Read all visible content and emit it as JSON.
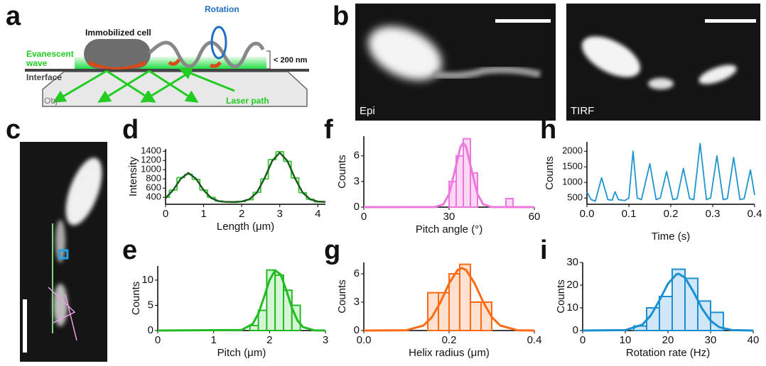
{
  "panel_labels": [
    "a",
    "b",
    "c",
    "d",
    "e",
    "f",
    "g",
    "h",
    "i"
  ],
  "diagram": {
    "cell": "Immobilized cell",
    "rotation": "Rotation",
    "wave": [
      "Evanescent",
      "wave"
    ],
    "depth": "< 200 nm",
    "interface": "Interface",
    "objective": "Obj",
    "laser": "Laser path"
  },
  "micrographs": {
    "epi": "Epi",
    "tirf": "TIRF"
  },
  "chart_data": [
    {
      "type": "line",
      "xlabel": "Length (μm)",
      "ylabel": "Intensity",
      "xlim": [
        0,
        4.2
      ],
      "xticks": [
        0,
        1,
        2,
        3,
        4
      ],
      "ylim": [
        250,
        1450
      ],
      "yticks": [
        400,
        600,
        800,
        1000,
        1200,
        1400
      ],
      "x": [
        0,
        0.2,
        0.4,
        0.6,
        0.8,
        1.0,
        1.2,
        1.4,
        1.6,
        1.8,
        2.0,
        2.2,
        2.4,
        2.6,
        2.8,
        3.0,
        3.2,
        3.4,
        3.6,
        3.8,
        4.0,
        4.2
      ],
      "series": [
        {
          "color": "#3cc43c",
          "step": true,
          "values": [
            400,
            560,
            830,
            900,
            790,
            560,
            400,
            320,
            300,
            290,
            310,
            350,
            510,
            800,
            1220,
            1390,
            1180,
            820,
            500,
            360,
            300,
            300
          ]
        },
        {
          "color": "#1d5a1d",
          "values": [
            385,
            558,
            804,
            930,
            804,
            558,
            385,
            316,
            301,
            300,
            310,
            357,
            505,
            814,
            1190,
            1370,
            1190,
            814,
            505,
            357,
            310,
            302
          ]
        }
      ]
    },
    {
      "type": "histogram",
      "xlabel": "Pitch (μm)",
      "ylabel": "Counts",
      "xlim": [
        0,
        3
      ],
      "xticks": [
        0,
        1,
        2,
        3
      ],
      "ylim": [
        0,
        12.8
      ],
      "yticks": [
        0,
        5,
        10
      ],
      "color": "#22bb22",
      "fill": "#d6f5d6",
      "bins": [
        1.65,
        1.8,
        1.95,
        2.1,
        2.25,
        2.4,
        2.55
      ],
      "values": [
        1,
        4,
        12,
        11,
        8,
        5
      ],
      "fit": {
        "x": [
          0,
          1.5,
          1.7,
          1.8,
          1.9,
          2.0,
          2.1,
          2.2,
          2.3,
          2.4,
          2.5,
          2.6,
          2.8,
          3
        ],
        "values": [
          0,
          0.1,
          1.32,
          3.34,
          6.55,
          10,
          11.94,
          11.08,
          8,
          4.5,
          1.97,
          0.67,
          0.04,
          0
        ]
      }
    },
    {
      "type": "histogram",
      "xlabel": "Pitch angle (°)",
      "ylabel": "Counts",
      "xlim": [
        0,
        60
      ],
      "xticks": [
        0,
        30,
        60
      ],
      "ylim": [
        0,
        8.3
      ],
      "yticks": [
        0,
        3,
        6
      ],
      "color": "#ee77dd",
      "fill": "#fbd8f4",
      "bins": [
        30,
        32.5,
        35,
        37.5,
        40,
        42.5,
        45,
        47.5,
        50,
        52.5
      ],
      "values": [
        3,
        6,
        8,
        4,
        0,
        0,
        0,
        0,
        1
      ],
      "fit": {
        "x": [
          0,
          25,
          28,
          30,
          32,
          34,
          35,
          36,
          38,
          40,
          42,
          45,
          60
        ],
        "values": [
          0,
          0.01,
          0.33,
          1.52,
          4.22,
          7.04,
          7.5,
          7.04,
          4.22,
          1.52,
          0.33,
          0.01,
          0
        ]
      }
    },
    {
      "type": "histogram",
      "xlabel": "Helix radius (μm)",
      "ylabel": "Counts",
      "xlim": [
        0,
        0.4
      ],
      "xticks": [
        {
          "value": 0,
          "label": "0.0"
        },
        0.2,
        0.4
      ],
      "ylim": [
        0,
        7.2
      ],
      "yticks": [
        0,
        3,
        6
      ],
      "color": "#ff6a13",
      "fill": "#fde0d0",
      "bins": [
        0.15,
        0.175,
        0.2,
        0.225,
        0.25,
        0.275,
        0.3
      ],
      "values": [
        4,
        4,
        6,
        7,
        3,
        3
      ],
      "fit": {
        "x": [
          0,
          0.1,
          0.14,
          0.16,
          0.18,
          0.2,
          0.22,
          0.23,
          0.24,
          0.26,
          0.28,
          0.3,
          0.32,
          0.36,
          0.4
        ],
        "values": [
          0,
          0.03,
          0.53,
          1.43,
          3.02,
          4.98,
          6.4,
          6.6,
          6.4,
          4.98,
          3.02,
          1.43,
          0.53,
          0.03,
          0
        ]
      }
    },
    {
      "type": "line",
      "xlabel": "Time (s)",
      "ylabel": "Counts",
      "xlim": [
        0,
        0.4
      ],
      "xticks": [
        {
          "value": 0,
          "label": "0.0"
        },
        0.1,
        0.2,
        0.3,
        0.4
      ],
      "ylim": [
        300,
        2300
      ],
      "yticks": [
        500,
        1000,
        1500,
        2000
      ],
      "x": [
        0,
        0.01,
        0.02,
        0.035,
        0.05,
        0.06,
        0.067,
        0.075,
        0.09,
        0.1,
        0.11,
        0.12,
        0.13,
        0.15,
        0.165,
        0.175,
        0.19,
        0.205,
        0.215,
        0.23,
        0.245,
        0.255,
        0.27,
        0.285,
        0.295,
        0.31,
        0.325,
        0.335,
        0.35,
        0.365,
        0.375,
        0.39,
        0.4
      ],
      "series": [
        {
          "color": "#1f95cf",
          "values": [
            700,
            450,
            400,
            1150,
            450,
            430,
            700,
            450,
            420,
            500,
            2000,
            500,
            450,
            1600,
            450,
            500,
            1350,
            450,
            480,
            1450,
            480,
            450,
            2250,
            450,
            500,
            1850,
            450,
            480,
            1800,
            450,
            480,
            1400,
            600
          ]
        }
      ]
    },
    {
      "type": "histogram",
      "xlabel": "Rotation rate (Hz)",
      "ylabel": "Counts",
      "xlim": [
        0,
        40
      ],
      "xticks": [
        0,
        10,
        20,
        30,
        40
      ],
      "ylim": [
        0,
        30
      ],
      "yticks": [
        0,
        10,
        20,
        30
      ],
      "color": "#1b8fd1",
      "fill": "#cfe7f6",
      "bins": [
        12,
        15,
        18,
        21,
        24,
        27,
        30,
        33
      ],
      "values": [
        2,
        10,
        15,
        27,
        23,
        13,
        8
      ],
      "fit": {
        "x": [
          0,
          10,
          14,
          16,
          18,
          20,
          22,
          22.5,
          24,
          26,
          28,
          30,
          32,
          35,
          40
        ],
        "values": [
          0,
          0.19,
          2.6,
          6.7,
          13.3,
          20.6,
          24.8,
          25,
          23.3,
          17,
          9.7,
          4.3,
          1.5,
          0.19,
          0
        ]
      }
    }
  ]
}
